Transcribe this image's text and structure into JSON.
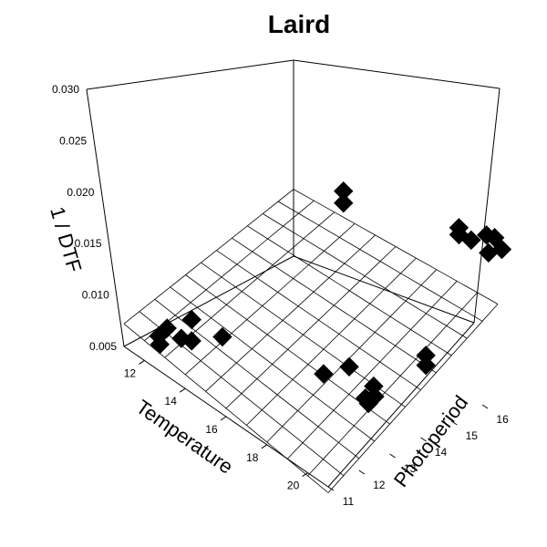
{
  "chart_data": {
    "type": "scatter",
    "title": "Laird",
    "xlabel": "Temperature",
    "ylabel": "Photoperiod",
    "zlabel": "1 / DTF",
    "xlim": [
      11,
      21
    ],
    "ylim": [
      11,
      16.5
    ],
    "zlim": [
      0.005,
      0.03
    ],
    "x_ticks": [
      "12",
      "14",
      "16",
      "18",
      "20"
    ],
    "y_ticks": [
      "11",
      "12",
      "13",
      "14",
      "15",
      "16"
    ],
    "z_ticks": [
      "0.005",
      "0.010",
      "0.015",
      "0.020",
      "0.025",
      "0.030"
    ],
    "surface": {
      "type": "fitted-plane",
      "grid": true
    },
    "points": [
      {
        "x": 11.8,
        "y": 11.6,
        "z": 0.0062
      },
      {
        "x": 11.9,
        "y": 11.8,
        "z": 0.0068
      },
      {
        "x": 12.0,
        "y": 11.5,
        "z": 0.0058
      },
      {
        "x": 12.3,
        "y": 12.0,
        "z": 0.006
      },
      {
        "x": 12.5,
        "y": 12.2,
        "z": 0.0057
      },
      {
        "x": 12.2,
        "y": 12.4,
        "z": 0.0071
      },
      {
        "x": 12.8,
        "y": 13.0,
        "z": 0.0052
      },
      {
        "x": 17.5,
        "y": 14.0,
        "z": 0.0072
      },
      {
        "x": 17.0,
        "y": 13.5,
        "z": 0.0066
      },
      {
        "x": 19.2,
        "y": 13.7,
        "z": 0.0071
      },
      {
        "x": 19.0,
        "y": 13.8,
        "z": 0.0077
      },
      {
        "x": 19.5,
        "y": 13.2,
        "z": 0.0082
      },
      {
        "x": 19.5,
        "y": 13.3,
        "z": 0.0075
      },
      {
        "x": 20.5,
        "y": 14.5,
        "z": 0.0108
      },
      {
        "x": 20.5,
        "y": 14.5,
        "z": 0.0118
      },
      {
        "x": 14.2,
        "y": 16.0,
        "z": 0.0158
      },
      {
        "x": 14.2,
        "y": 16.0,
        "z": 0.017
      },
      {
        "x": 19.4,
        "y": 16.3,
        "z": 0.0195
      },
      {
        "x": 19.4,
        "y": 16.3,
        "z": 0.0202
      },
      {
        "x": 20.0,
        "y": 16.3,
        "z": 0.0198
      },
      {
        "x": 21.0,
        "y": 16.2,
        "z": 0.0201
      },
      {
        "x": 20.6,
        "y": 16.4,
        "z": 0.021
      },
      {
        "x": 21.0,
        "y": 16.4,
        "z": 0.0213
      },
      {
        "x": 21.5,
        "y": 16.3,
        "z": 0.021
      }
    ]
  }
}
